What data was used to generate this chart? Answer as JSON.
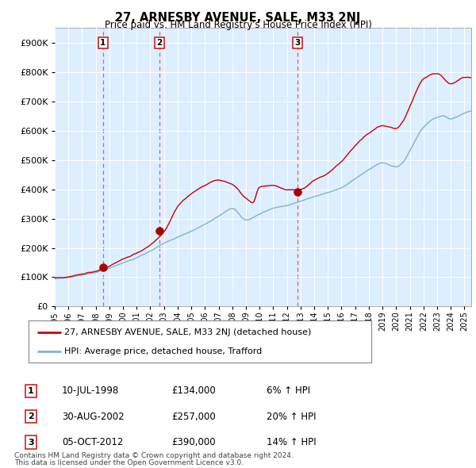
{
  "title": "27, ARNESBY AVENUE, SALE, M33 2NJ",
  "subtitle": "Price paid vs. HM Land Registry's House Price Index (HPI)",
  "legend_line1": "27, ARNESBY AVENUE, SALE, M33 2NJ (detached house)",
  "legend_line2": "HPI: Average price, detached house, Trafford",
  "footnote1": "Contains HM Land Registry data © Crown copyright and database right 2024.",
  "footnote2": "This data is licensed under the Open Government Licence v3.0.",
  "transactions": [
    {
      "num": 1,
      "date": "10-JUL-1998",
      "price": 134000,
      "pct": "6% ↑ HPI",
      "year": 1998.53
    },
    {
      "num": 2,
      "date": "30-AUG-2002",
      "price": 257000,
      "pct": "20% ↑ HPI",
      "year": 2002.67
    },
    {
      "num": 3,
      "date": "05-OCT-2012",
      "price": 390000,
      "pct": "14% ↑ HPI",
      "year": 2012.76
    }
  ],
  "hpi_color": "#7fb3d3",
  "price_color": "#cc0000",
  "marker_color": "#aa0000",
  "vline_color": "#e06060",
  "bg_color": "#ddeeff",
  "grid_color": "#ffffff",
  "ylim": [
    0,
    950000
  ],
  "yticks": [
    0,
    100000,
    200000,
    300000,
    400000,
    500000,
    600000,
    700000,
    800000,
    900000
  ],
  "xlim_start": 1995.0,
  "xlim_end": 2025.5,
  "hpi_x": [
    1995.0,
    1996.0,
    1997.0,
    1998.0,
    1999.0,
    2000.0,
    2001.0,
    2002.0,
    2003.0,
    2004.0,
    2005.0,
    2006.0,
    2007.0,
    2008.0,
    2009.0,
    2010.0,
    2011.0,
    2012.0,
    2013.0,
    2014.0,
    2015.0,
    2016.0,
    2017.0,
    2018.0,
    2019.0,
    2020.0,
    2020.5,
    2021.0,
    2022.0,
    2023.0,
    2023.5,
    2024.0,
    2025.0,
    2025.3
  ],
  "hpi_y": [
    95000,
    100000,
    108000,
    118000,
    132000,
    150000,
    168000,
    190000,
    215000,
    235000,
    255000,
    278000,
    308000,
    335000,
    295000,
    315000,
    335000,
    345000,
    360000,
    375000,
    388000,
    405000,
    435000,
    465000,
    490000,
    475000,
    490000,
    530000,
    610000,
    645000,
    650000,
    640000,
    660000,
    665000
  ],
  "price_x": [
    1995.0,
    1996.0,
    1997.0,
    1998.0,
    1999.0,
    2000.0,
    2001.0,
    2002.0,
    2003.0,
    2004.0,
    2005.0,
    2006.0,
    2007.0,
    2008.0,
    2009.0,
    2009.5,
    2010.0,
    2011.0,
    2012.0,
    2013.0,
    2014.0,
    2015.0,
    2016.0,
    2017.0,
    2018.0,
    2019.0,
    2020.0,
    2020.5,
    2021.0,
    2022.0,
    2023.0,
    2024.0,
    2025.0,
    2025.3
  ],
  "price_y": [
    98000,
    103000,
    112000,
    124000,
    140000,
    162000,
    183000,
    210000,
    255000,
    340000,
    380000,
    410000,
    430000,
    415000,
    370000,
    355000,
    410000,
    415000,
    400000,
    400000,
    430000,
    455000,
    495000,
    548000,
    590000,
    615000,
    605000,
    630000,
    680000,
    775000,
    795000,
    760000,
    780000,
    780000
  ]
}
